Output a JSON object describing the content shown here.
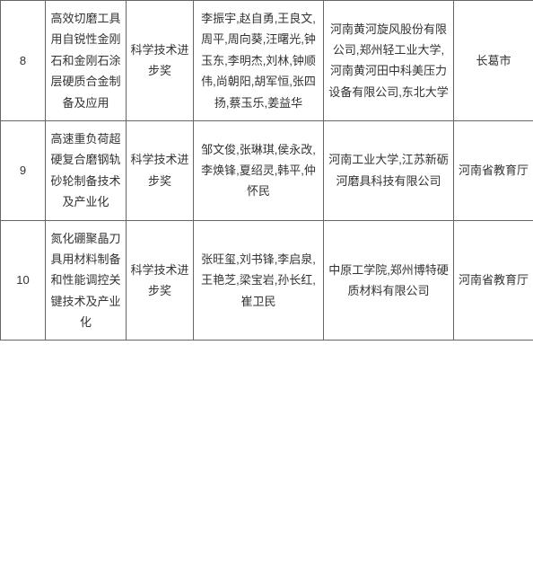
{
  "table": {
    "rows": [
      {
        "num": "8",
        "title": "高效切磨工具用自锐性金刚石和金刚石涂层硬质合金制备及应用",
        "award": "科学技术进步奖",
        "people": "李振宇,赵自勇,王良文,周平,周向葵,汪曙光,钟玉东,李明杰,刘林,钟顺伟,尚朝阳,胡军恒,张四扬,蔡玉乐,姜益华",
        "org": "河南黄河旋风股份有限公司,郑州轻工业大学,河南黄河田中科美压力设备有限公司,东北大学",
        "rec": "长葛市"
      },
      {
        "num": "9",
        "title": "高速重负荷超硬复合磨钢轨砂轮制备技术及产业化",
        "award": "科学技术进步奖",
        "people": "邹文俊,张琳琪,侯永改,李焕锋,夏绍灵,韩平,仲怀民",
        "org": "河南工业大学,江苏新砺河磨具科技有限公司",
        "rec": "河南省教育厅"
      },
      {
        "num": "10",
        "title": "氮化硼聚晶刀具用材料制备和性能调控关键技术及产业化",
        "award": "科学技术进步奖",
        "people": "张旺玺,刘书锋,李启泉,王艳芝,梁宝岩,孙长红,崔卫民",
        "org": "中原工学院,郑州博特硬质材料有限公司",
        "rec": "河南省教育厅"
      }
    ]
  }
}
